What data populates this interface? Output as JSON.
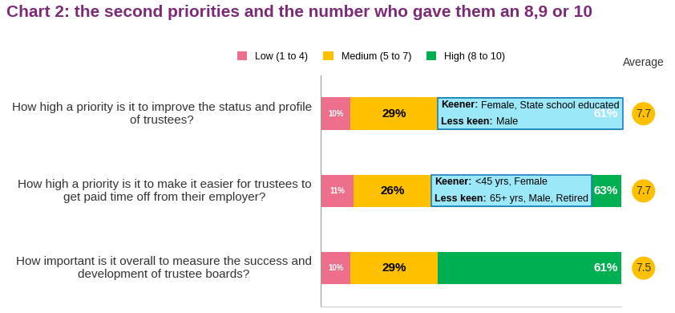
{
  "chart_data": {
    "type": "bar",
    "orientation": "horizontal",
    "stacked": true,
    "title": "Chart 2: the second priorities and the number who gave them an 8,9 or 10",
    "categories": [
      "How high a priority is it to improve the status and profile of trustees?",
      "How high a priority is it to make it easier for trustees to get paid time off from their employer?",
      "How important is it overall to measure the success and development of trustee boards?"
    ],
    "series": [
      {
        "name": "Low (1 to 4)",
        "color": "#ee6f8c",
        "values": [
          10,
          11,
          10
        ],
        "value_labels": [
          "10%",
          "11%",
          "10%"
        ]
      },
      {
        "name": "Medium (5 to 7)",
        "color": "#ffc000",
        "values": [
          29,
          26,
          29
        ],
        "value_labels": [
          "29%",
          "26%",
          "29%"
        ]
      },
      {
        "name": "High (8 to 10)",
        "color": "#00b050",
        "values": [
          61,
          63,
          61
        ],
        "value_labels": [
          "61%",
          "63%",
          "61%"
        ]
      }
    ],
    "data_labels": true,
    "legend": "upper center",
    "xlim": [
      0,
      100
    ],
    "xticks": [],
    "tick_labels": "y",
    "grid": false,
    "average_title": "Average",
    "averages": [
      7.7,
      7.7,
      7.5
    ],
    "notes": [
      {
        "lines": [
          [
            "Keener:",
            "Female, State school educated"
          ],
          [
            "Less keen:",
            "Male"
          ]
        ]
      },
      {
        "lines": [
          [
            "Keener:",
            "<45 yrs, Female"
          ],
          [
            "Less keen:",
            "65+ yrs, Male, Retired"
          ]
        ]
      },
      null
    ]
  }
}
